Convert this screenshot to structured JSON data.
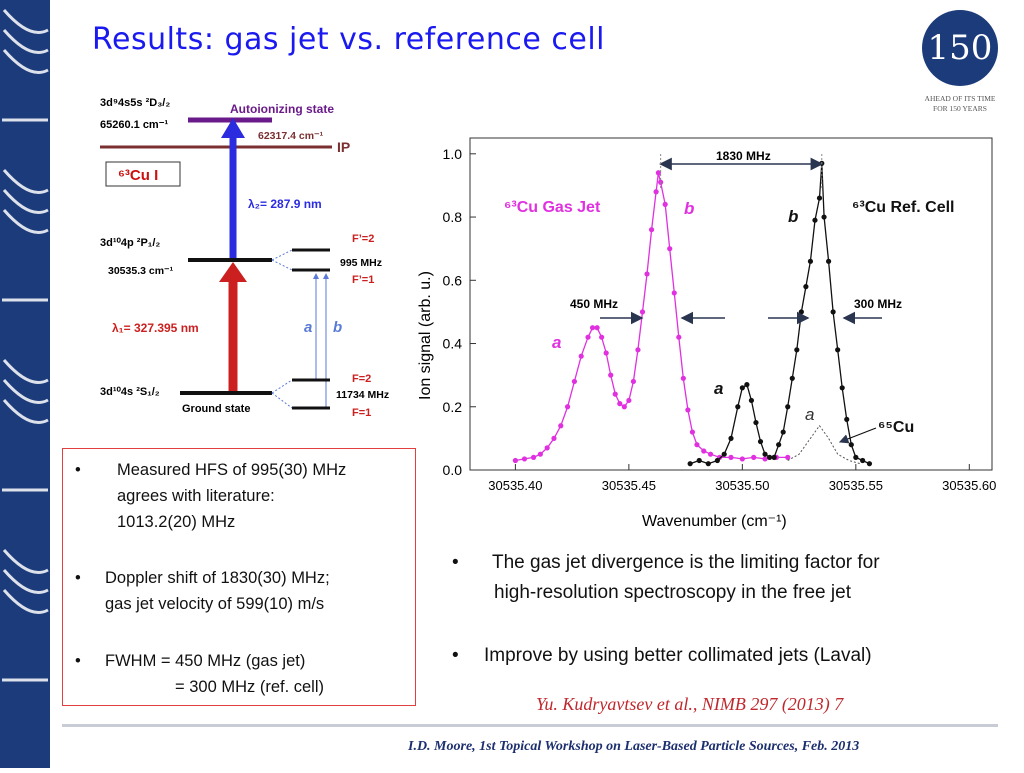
{
  "slide_title": "Results: gas jet vs. reference cell",
  "logo": {
    "number": "150",
    "caption_line1": "AHEAD OF ITS TIME",
    "caption_line2": "FOR 150 YEARS"
  },
  "level_diagram": {
    "autoionizing_config": "3d⁹4s5s ²D₃/₂",
    "autoionizing_energy": "65260.1 cm⁻¹",
    "autoionizing_label": "Autoionizing state",
    "ip_energy": "62317.4 cm⁻¹",
    "ip_label": "IP",
    "atom_label": "⁶³Cu I",
    "lambda2": "λ₂= 287.9 nm",
    "p_config": "3d¹⁰4p ²P₁/₂",
    "p_energy": "30535.3 cm⁻¹",
    "f_prime_2": "F’=2",
    "p_hfs": "995 MHz",
    "f_prime_1": "F’=1",
    "lambda1": "λ₁= 327.395 nm",
    "trans_a": "a",
    "trans_b": "b",
    "s_config": "3d¹⁰4s ²S₁/₂",
    "ground_label": "Ground state",
    "f_2": "F=2",
    "s_hfs": "11734 MHz",
    "f_1": "F=1"
  },
  "bullets": [
    {
      "lines": [
        "Measured HFS of 995(30) MHz",
        "agrees with literature:",
        "1013.2(20) MHz"
      ]
    },
    {
      "lines": [
        "Doppler shift of 1830(30) MHz;",
        "gas jet velocity of 599(10) m/s"
      ]
    },
    {
      "lines": [
        "FWHM = 450 MHz (gas jet)",
        "= 300 MHz (ref. cell)"
      ]
    }
  ],
  "bullet_symbol": "•",
  "right_bullets": [
    {
      "lines": [
        "The gas jet divergence is the limiting factor for",
        "high-resolution spectroscopy in the free jet"
      ]
    },
    {
      "lines": [
        "Improve by using better collimated jets (Laval)"
      ]
    }
  ],
  "citation": "Yu. Kudryavtsev et al., NIMB 297 (2013) 7",
  "footer": "I.D. Moore, 1st Topical Workshop on Laser-Based Particle Sources, Feb. 2013",
  "colors": {
    "sidebar": "#1c3b7a",
    "title": "#1a1af0",
    "gas_jet": "#e030e0",
    "ref_cell": "#111111",
    "lambda2_arrow": "#2b2be0",
    "lambda1_arrow": "#cc2020",
    "autoionizing_level": "#6a1a8a",
    "ip_level": "#7a3030"
  },
  "chart_data": {
    "type": "scatter",
    "xlabel": "Wavenumber (cm⁻¹)",
    "ylabel": "Ion signal (arb. u.)",
    "xlim": [
      30535.38,
      30535.61
    ],
    "ylim": [
      0.0,
      1.05
    ],
    "x_ticks": [
      30535.4,
      30535.45,
      30535.5,
      30535.55,
      30535.6
    ],
    "x_tick_labels": [
      "30535.40",
      "30535.45",
      "30535.50",
      "30535.55",
      "30535.60"
    ],
    "y_ticks": [
      0.0,
      0.2,
      0.4,
      0.6,
      0.8,
      1.0
    ],
    "y_tick_labels": [
      "0.0",
      "0.2",
      "0.4",
      "0.6",
      "0.8",
      "1.0"
    ],
    "annotations": {
      "doppler_shift": "1830 MHz",
      "fwhm_gas": "450 MHz",
      "fwhm_ref": "300 MHz",
      "gas_jet_label": "⁶³Cu Gas Jet",
      "ref_cell_label": "⁶³Cu Ref. Cell",
      "gas_peak_a": "a",
      "gas_peak_b": "b",
      "ref_peak_a": "a",
      "ref_peak_b": "b",
      "cu65_peak_a": "a",
      "cu65_label": "⁶⁵Cu"
    },
    "series": [
      {
        "name": "63Cu Gas Jet",
        "points": [
          [
            30535.4,
            0.03
          ],
          [
            30535.404,
            0.035
          ],
          [
            30535.408,
            0.04
          ],
          [
            30535.411,
            0.05
          ],
          [
            30535.414,
            0.07
          ],
          [
            30535.417,
            0.1
          ],
          [
            30535.42,
            0.14
          ],
          [
            30535.423,
            0.2
          ],
          [
            30535.426,
            0.28
          ],
          [
            30535.429,
            0.36
          ],
          [
            30535.432,
            0.42
          ],
          [
            30535.434,
            0.45
          ],
          [
            30535.436,
            0.45
          ],
          [
            30535.438,
            0.42
          ],
          [
            30535.44,
            0.37
          ],
          [
            30535.442,
            0.3
          ],
          [
            30535.444,
            0.24
          ],
          [
            30535.446,
            0.21
          ],
          [
            30535.448,
            0.2
          ],
          [
            30535.45,
            0.22
          ],
          [
            30535.452,
            0.28
          ],
          [
            30535.454,
            0.38
          ],
          [
            30535.456,
            0.5
          ],
          [
            30535.458,
            0.62
          ],
          [
            30535.46,
            0.76
          ],
          [
            30535.462,
            0.88
          ],
          [
            30535.463,
            0.94
          ],
          [
            30535.464,
            0.91
          ],
          [
            30535.466,
            0.84
          ],
          [
            30535.468,
            0.7
          ],
          [
            30535.47,
            0.56
          ],
          [
            30535.472,
            0.42
          ],
          [
            30535.474,
            0.29
          ],
          [
            30535.476,
            0.19
          ],
          [
            30535.478,
            0.12
          ],
          [
            30535.48,
            0.08
          ],
          [
            30535.483,
            0.06
          ],
          [
            30535.486,
            0.05
          ],
          [
            30535.49,
            0.04
          ],
          [
            30535.495,
            0.04
          ],
          [
            30535.5,
            0.035
          ],
          [
            30535.505,
            0.04
          ],
          [
            30535.51,
            0.035
          ],
          [
            30535.515,
            0.04
          ],
          [
            30535.52,
            0.04
          ]
        ]
      },
      {
        "name": "63Cu Ref. Cell",
        "points": [
          [
            30535.477,
            0.02
          ],
          [
            30535.481,
            0.03
          ],
          [
            30535.485,
            0.02
          ],
          [
            30535.489,
            0.03
          ],
          [
            30535.492,
            0.05
          ],
          [
            30535.495,
            0.1
          ],
          [
            30535.498,
            0.2
          ],
          [
            30535.5,
            0.26
          ],
          [
            30535.502,
            0.27
          ],
          [
            30535.504,
            0.22
          ],
          [
            30535.506,
            0.15
          ],
          [
            30535.508,
            0.09
          ],
          [
            30535.51,
            0.05
          ],
          [
            30535.512,
            0.04
          ],
          [
            30535.514,
            0.04
          ],
          [
            30535.516,
            0.08
          ],
          [
            30535.518,
            0.12
          ],
          [
            30535.52,
            0.2
          ],
          [
            30535.522,
            0.29
          ],
          [
            30535.524,
            0.38
          ],
          [
            30535.526,
            0.5
          ],
          [
            30535.528,
            0.58
          ],
          [
            30535.53,
            0.66
          ],
          [
            30535.532,
            0.79
          ],
          [
            30535.534,
            0.86
          ],
          [
            30535.535,
            0.97
          ],
          [
            30535.536,
            0.8
          ],
          [
            30535.538,
            0.66
          ],
          [
            30535.54,
            0.5
          ],
          [
            30535.542,
            0.38
          ],
          [
            30535.544,
            0.26
          ],
          [
            30535.546,
            0.16
          ],
          [
            30535.548,
            0.08
          ],
          [
            30535.55,
            0.04
          ],
          [
            30535.553,
            0.03
          ],
          [
            30535.556,
            0.02
          ]
        ]
      },
      {
        "name": "65Cu (dotted)",
        "style": "dotted",
        "points": [
          [
            30535.52,
            0.03
          ],
          [
            30535.525,
            0.05
          ],
          [
            30535.53,
            0.1
          ],
          [
            30535.534,
            0.14
          ],
          [
            30535.538,
            0.1
          ],
          [
            30535.542,
            0.05
          ],
          [
            30535.547,
            0.03
          ],
          [
            30535.552,
            0.02
          ]
        ]
      }
    ]
  }
}
